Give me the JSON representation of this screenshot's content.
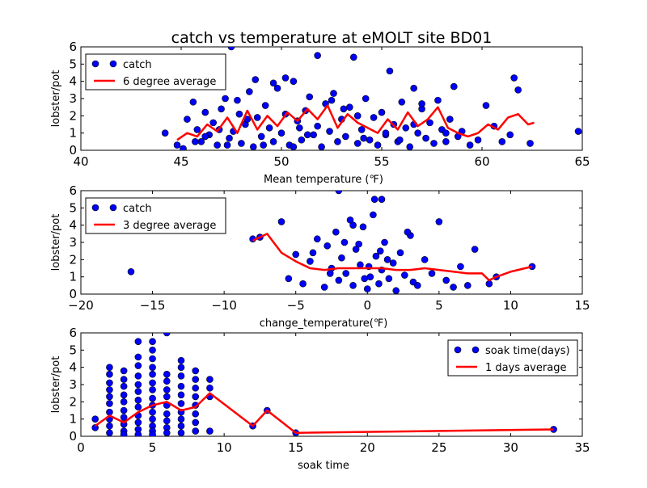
{
  "page_title": "catch vs temperature at eMOLT site BD01",
  "colors": {
    "points": "#0000ff",
    "line": "#ff0000",
    "axes": "#000000"
  },
  "chart_data": [
    {
      "type": "scatter",
      "xlabel": "Mean temperature (℉)",
      "ylabel": "lobster/pot",
      "xlim": [
        40,
        65
      ],
      "ylim": [
        0,
        6
      ],
      "xticks": [
        40,
        45,
        50,
        55,
        60,
        65
      ],
      "yticks": [
        0,
        1,
        2,
        3,
        4,
        5,
        6
      ],
      "grid": false,
      "legend_position": "top-left",
      "series": [
        {
          "name": "catch",
          "style": "points",
          "x": [
            44.2,
            44.8,
            45.1,
            45.3,
            45.6,
            45.8,
            46.0,
            46.2,
            46.4,
            46.6,
            46.8,
            47.0,
            47.2,
            47.4,
            47.6,
            47.8,
            48.0,
            48.2,
            48.4,
            48.6,
            48.8,
            49.0,
            49.2,
            49.4,
            49.6,
            49.8,
            50.0,
            50.2,
            50.4,
            50.6,
            50.8,
            51.0,
            51.2,
            51.4,
            51.6,
            51.8,
            52.0,
            52.2,
            52.4,
            52.6,
            52.8,
            53.0,
            53.2,
            53.4,
            53.6,
            53.8,
            54.0,
            54.2,
            54.4,
            54.6,
            54.8,
            55.0,
            55.2,
            55.4,
            55.6,
            55.8,
            56.0,
            56.2,
            56.4,
            56.6,
            56.8,
            57.0,
            57.2,
            57.4,
            57.6,
            57.8,
            58.0,
            58.2,
            58.4,
            58.6,
            58.8,
            59.0,
            59.4,
            59.8,
            60.2,
            60.6,
            61.0,
            61.4,
            61.8,
            62.4,
            64.8,
            47.5,
            50.2,
            51.8,
            53.1,
            48.3,
            46.2,
            49.6,
            52.5,
            55.2,
            57.0,
            45.7,
            47.9,
            50.9,
            54.1,
            56.6,
            49.1,
            51.3,
            53.8,
            48.7,
            50.6,
            46.9,
            55.9,
            58.2,
            61.6,
            47.3
          ],
          "y": [
            1.0,
            0.3,
            0.1,
            1.8,
            2.8,
            1.2,
            0.5,
            2.2,
            0.9,
            1.6,
            0.3,
            2.4,
            3.0,
            0.7,
            1.1,
            2.9,
            0.4,
            1.5,
            3.4,
            0.2,
            1.9,
            0.8,
            2.6,
            1.3,
            0.5,
            3.6,
            1.0,
            2.1,
            0.3,
            4.0,
            1.7,
            0.6,
            2.3,
            3.1,
            0.9,
            1.4,
            0.2,
            2.7,
            1.1,
            3.3,
            0.5,
            1.8,
            0.8,
            2.5,
            5.4,
            0.4,
            1.2,
            3.0,
            0.6,
            1.9,
            0.3,
            2.2,
            0.9,
            4.6,
            1.5,
            0.5,
            2.8,
            1.3,
            0.2,
            3.6,
            1.0,
            2.4,
            0.7,
            1.6,
            0.4,
            2.9,
            1.2,
            0.5,
            1.8,
            3.7,
            0.8,
            1.1,
            0.3,
            0.6,
            2.6,
            1.4,
            0.5,
            0.9,
            3.5,
            0.4,
            1.1,
            6.0,
            4.2,
            5.5,
            2.4,
            1.8,
            0.8,
            3.9,
            2.9,
            1.0,
            2.7,
            0.5,
            2.1,
            1.3,
            0.7,
            1.5,
            0.3,
            0.9,
            2.0,
            4.1,
            0.2,
            1.2,
            0.6,
            1.0,
            4.2,
            0.3
          ]
        },
        {
          "name": "6 degree average",
          "style": "line",
          "x": [
            44.8,
            45.3,
            45.8,
            46.3,
            46.8,
            47.3,
            47.8,
            48.3,
            48.8,
            49.3,
            49.8,
            50.3,
            50.8,
            51.3,
            51.8,
            52.3,
            52.8,
            53.3,
            53.8,
            54.3,
            54.8,
            55.3,
            55.8,
            56.3,
            56.8,
            57.3,
            57.8,
            58.3,
            58.8,
            59.3,
            59.8,
            60.3,
            60.8,
            61.3,
            61.8,
            62.3,
            62.6
          ],
          "y": [
            0.6,
            1.0,
            0.8,
            1.5,
            1.1,
            1.9,
            1.0,
            2.3,
            1.2,
            2.0,
            1.4,
            2.2,
            1.7,
            2.4,
            1.8,
            2.6,
            1.3,
            2.1,
            1.6,
            1.3,
            1.0,
            1.8,
            1.2,
            2.2,
            1.4,
            1.8,
            2.5,
            1.3,
            1.0,
            0.8,
            1.0,
            1.5,
            1.2,
            1.9,
            2.1,
            1.5,
            1.6
          ]
        }
      ]
    },
    {
      "type": "scatter",
      "xlabel": "change_temperature(℉)",
      "ylabel": "lobster/pot",
      "xlim": [
        -20,
        15
      ],
      "ylim": [
        0,
        6
      ],
      "xticks": [
        -20,
        -15,
        -10,
        -5,
        0,
        5,
        10,
        15
      ],
      "yticks": [
        0,
        1,
        2,
        3,
        4,
        5,
        6
      ],
      "grid": false,
      "legend_position": "top-left",
      "series": [
        {
          "name": "catch",
          "style": "points",
          "x": [
            -16.5,
            -8.0,
            -7.5,
            -6.0,
            -5.5,
            -5.0,
            -4.5,
            -4.0,
            -3.5,
            -3.0,
            -2.8,
            -2.5,
            -2.2,
            -2.0,
            -1.8,
            -1.5,
            -1.2,
            -1.0,
            -0.8,
            -0.5,
            -0.3,
            0.0,
            0.2,
            0.4,
            0.6,
            0.8,
            1.0,
            1.2,
            1.5,
            1.8,
            2.0,
            2.3,
            2.6,
            3.0,
            3.5,
            4.0,
            4.5,
            5.0,
            5.5,
            6.0,
            6.5,
            7.0,
            7.5,
            8.5,
            9.0,
            11.5,
            -2.0,
            0.5,
            1.0,
            -1.0,
            -3.8,
            -0.6,
            0.9,
            2.8,
            -1.6,
            0.1,
            1.4,
            -2.6,
            3.2,
            -0.2
          ],
          "y": [
            1.3,
            3.2,
            3.3,
            4.2,
            0.9,
            2.3,
            0.6,
            1.9,
            3.2,
            0.4,
            2.8,
            1.5,
            3.6,
            0.8,
            2.1,
            1.2,
            4.3,
            0.5,
            2.6,
            1.7,
            3.9,
            0.3,
            1.0,
            4.6,
            2.2,
            0.6,
            1.4,
            3.0,
            0.9,
            1.8,
            0.2,
            2.4,
            1.1,
            3.4,
            0.5,
            2.0,
            1.2,
            4.2,
            0.8,
            0.4,
            1.6,
            0.5,
            2.6,
            0.6,
            1.0,
            1.6,
            6.0,
            5.5,
            5.5,
            4.0,
            2.4,
            2.9,
            2.5,
            3.6,
            3.0,
            1.6,
            2.0,
            1.2,
            0.7,
            0.9
          ]
        },
        {
          "name": "3 degree average",
          "style": "line",
          "x": [
            -8.0,
            -7.0,
            -6.0,
            -5.0,
            -4.0,
            -3.0,
            -2.0,
            -1.0,
            0.0,
            1.0,
            2.0,
            3.0,
            4.0,
            5.0,
            6.0,
            7.0,
            8.0,
            8.5,
            9.0,
            10.0,
            11.5
          ],
          "y": [
            3.1,
            3.5,
            2.4,
            1.9,
            1.5,
            1.4,
            1.5,
            1.5,
            1.5,
            1.5,
            1.4,
            1.4,
            1.5,
            1.4,
            1.3,
            1.2,
            1.2,
            0.8,
            1.0,
            1.3,
            1.6
          ]
        }
      ]
    },
    {
      "type": "scatter",
      "xlabel": "soak time",
      "ylabel": "lobster/pot",
      "xlim": [
        0,
        35
      ],
      "ylim": [
        0,
        6
      ],
      "xticks": [
        0,
        5,
        10,
        15,
        20,
        25,
        30,
        35
      ],
      "yticks": [
        0,
        1,
        2,
        3,
        4,
        5,
        6
      ],
      "grid": false,
      "legend_position": "top-right",
      "series": [
        {
          "name": "soak time(days)",
          "style": "points",
          "x": [
            1,
            1,
            2,
            2,
            2,
            2,
            2,
            2,
            2,
            2,
            2,
            2,
            3,
            3,
            3,
            3,
            3,
            3,
            3,
            3,
            3,
            3,
            4,
            4,
            4,
            4,
            4,
            4,
            4,
            4,
            4,
            4,
            4,
            4,
            5,
            5,
            5,
            5,
            5,
            5,
            5,
            5,
            5,
            5,
            5,
            5,
            5,
            5,
            6,
            6,
            6,
            6,
            6,
            6,
            6,
            6,
            6,
            6,
            7,
            7,
            7,
            7,
            7,
            7,
            7,
            7,
            7,
            7,
            8,
            8,
            8,
            8,
            8,
            8,
            8,
            8,
            9,
            9,
            9,
            9,
            12,
            13,
            15,
            33
          ],
          "y": [
            1.0,
            0.5,
            4.0,
            3.6,
            3.1,
            2.7,
            2.3,
            1.9,
            1.4,
            1.0,
            0.6,
            0.2,
            3.8,
            3.3,
            2.9,
            2.4,
            2.0,
            1.5,
            1.1,
            0.7,
            0.3,
            0.1,
            5.5,
            4.6,
            4.1,
            3.5,
            3.0,
            2.6,
            2.1,
            1.7,
            1.2,
            0.8,
            0.4,
            0.1,
            5.5,
            5.0,
            4.5,
            4.0,
            3.6,
            3.1,
            2.7,
            2.2,
            1.8,
            1.4,
            1.0,
            0.6,
            0.3,
            0.1,
            6.0,
            3.6,
            3.2,
            2.7,
            2.3,
            1.8,
            1.3,
            0.9,
            0.5,
            0.2,
            4.4,
            4.0,
            3.5,
            2.9,
            2.4,
            1.9,
            1.4,
            1.0,
            0.6,
            0.2,
            3.8,
            3.3,
            2.8,
            2.3,
            1.8,
            1.3,
            0.8,
            0.3,
            3.3,
            2.8,
            2.3,
            0.3,
            0.6,
            1.5,
            0.2,
            0.4
          ]
        },
        {
          "name": "1 days average",
          "style": "line",
          "x": [
            1,
            2,
            3,
            4,
            5,
            6,
            7,
            8,
            9,
            12,
            13,
            15,
            33
          ],
          "y": [
            0.6,
            1.2,
            0.8,
            1.4,
            1.8,
            2.0,
            1.5,
            1.7,
            2.5,
            0.6,
            1.5,
            0.2,
            0.4
          ]
        }
      ]
    }
  ]
}
